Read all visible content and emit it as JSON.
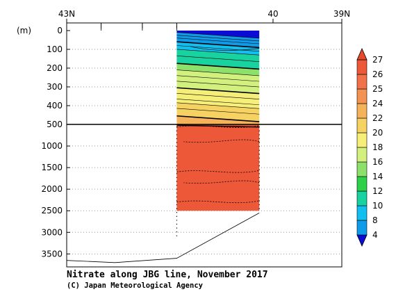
{
  "chart_data": {
    "type": "heatmap",
    "title": "Nitrate along JBG line, November 2017",
    "credit": "(C) Japan Meteorological Agency",
    "x_axis": {
      "position": "top",
      "range_lat": [
        43,
        39
      ],
      "tick_labels": [
        {
          "lat": 43,
          "label": "43N"
        },
        {
          "lat": 40,
          "label": "40"
        },
        {
          "lat": 39,
          "label": "39N"
        }
      ],
      "minor_ticks_lat": [
        42.5,
        41.9,
        41.4
      ]
    },
    "y_axis": {
      "unit_label": "(m)",
      "upper_panel": {
        "range": [
          0,
          500
        ],
        "tick_labels": [
          "0",
          "100",
          "200",
          "300",
          "400",
          "500"
        ],
        "ticks": [
          0,
          100,
          200,
          300,
          400,
          500
        ]
      },
      "lower_panel": {
        "range": [
          500,
          3800
        ],
        "tick_labels": [
          "1000",
          "1500",
          "2000",
          "2500",
          "3000",
          "3500"
        ],
        "ticks": [
          1000,
          1500,
          2000,
          2500,
          3000,
          3500
        ]
      },
      "grid": "dotted"
    },
    "section": {
      "lat_start": 41.4,
      "lat_end": 40.2,
      "max_depth": 2500,
      "upper_bands": [
        {
          "from": 0,
          "to": 25,
          "level": "<4"
        },
        {
          "from": 25,
          "to": 75,
          "level": "4-8"
        },
        {
          "from": 75,
          "to": 115,
          "level": "8-10"
        },
        {
          "from": 115,
          "to": 190,
          "level": "10-12"
        },
        {
          "from": 190,
          "to": 225,
          "level": "14-16"
        },
        {
          "from": 225,
          "to": 320,
          "level": "16-18"
        },
        {
          "from": 320,
          "to": 400,
          "level": "18-20"
        },
        {
          "from": 400,
          "to": 470,
          "level": "20-22"
        },
        {
          "from": 470,
          "to": 500,
          "level": "22-24"
        }
      ],
      "deep_level": "24-25"
    },
    "bottom_topography": [
      {
        "lat": 43.0,
        "depth": 3650
      },
      {
        "lat": 42.3,
        "depth": 3700
      },
      {
        "lat": 41.4,
        "depth": 3600
      },
      {
        "lat": 40.2,
        "depth": 2550
      }
    ],
    "colorbar": {
      "levels": [
        "4",
        "8",
        "10",
        "12",
        "14",
        "16",
        "18",
        "20",
        "22",
        "24",
        "25",
        "26",
        "27"
      ],
      "colors": [
        "#0b0bd4",
        "#0f9be8",
        "#12c0f0",
        "#18d2a0",
        "#2fd04a",
        "#8de06a",
        "#d2f07e",
        "#f5ee78",
        "#f6d263",
        "#f4b25b",
        "#f49351",
        "#f0714a",
        "#ec5838",
        "#e64a2a"
      ],
      "triangles": "both"
    }
  }
}
